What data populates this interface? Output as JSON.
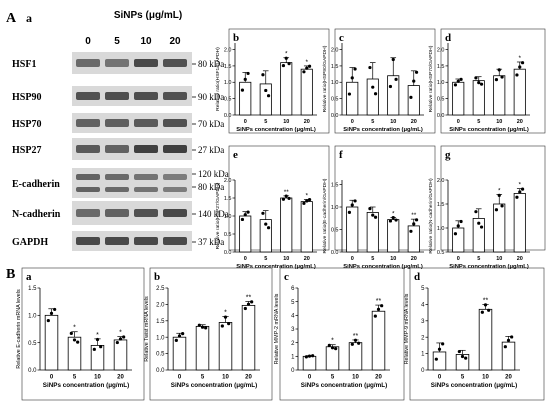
{
  "figure": {
    "panel_A": "A",
    "panel_B": "B",
    "sub_a": "a",
    "b_sub_a": "a"
  },
  "blot": {
    "conc_header": "SiNPs (μg/mL)",
    "conc": [
      "0",
      "5",
      "10",
      "20"
    ],
    "rows": [
      {
        "label": "HSF1",
        "sizes": [
          "80 kDa"
        ]
      },
      {
        "label": "HSP90",
        "sizes": [
          "90 kDa"
        ]
      },
      {
        "label": "HSP70",
        "sizes": [
          "70 kDa"
        ]
      },
      {
        "label": "HSP27",
        "sizes": [
          "27 kDa"
        ]
      },
      {
        "label": "E-cadherin",
        "sizes": [
          "120 kDa",
          "80 kDa"
        ]
      },
      {
        "label": "N-cadherin",
        "sizes": [
          "140 kDa"
        ]
      },
      {
        "label": "GAPDH",
        "sizes": [
          "37 kDa"
        ]
      }
    ]
  },
  "chart_data": [
    {
      "id": "Ab",
      "letter": "b",
      "type": "bar",
      "ylabel": "Relative ratio(HSF1/GAPDH)",
      "xlabel": "SiNPs concentration (μg/mL)",
      "categories": [
        "0",
        "5",
        "10",
        "20"
      ],
      "values": [
        1.0,
        0.95,
        1.6,
        1.4
      ],
      "errors": [
        0.3,
        0.4,
        0.15,
        0.1
      ],
      "ylim": [
        0,
        2.2
      ],
      "sig": [
        "",
        "",
        "*",
        "*"
      ]
    },
    {
      "id": "Ac",
      "letter": "c",
      "type": "bar",
      "ylabel": "Relative ratio(HSP90/GAPDH)",
      "xlabel": "SiNPs concentration (μg/mL)",
      "categories": [
        "0",
        "5",
        "10",
        "20"
      ],
      "values": [
        1.0,
        1.1,
        1.2,
        0.9
      ],
      "errors": [
        0.45,
        0.5,
        0.55,
        0.45
      ],
      "ylim": [
        0,
        2.2
      ],
      "sig": [
        "",
        "",
        "",
        ""
      ]
    },
    {
      "id": "Ad",
      "letter": "d",
      "type": "bar",
      "ylabel": "Relative ratio(HSP70/GAPDH)",
      "xlabel": "SiNPs concentration (μg/mL)",
      "categories": [
        "0",
        "5",
        "10",
        "20"
      ],
      "values": [
        1.0,
        1.05,
        1.2,
        1.4
      ],
      "errors": [
        0.1,
        0.12,
        0.2,
        0.22
      ],
      "ylim": [
        0,
        2.2
      ],
      "sig": [
        "",
        "",
        "",
        "*"
      ]
    },
    {
      "id": "Ae",
      "letter": "e",
      "type": "bar",
      "ylabel": "Relative ratio(HSP27/GAPDH)",
      "xlabel": "SiNPs concentration (μg/mL)",
      "categories": [
        "0",
        "5",
        "10",
        "20"
      ],
      "values": [
        1.0,
        0.9,
        1.5,
        1.4
      ],
      "errors": [
        0.12,
        0.25,
        0.06,
        0.06
      ],
      "ylim": [
        0,
        2.0
      ],
      "sig": [
        "",
        "",
        "**",
        "*"
      ]
    },
    {
      "id": "Af",
      "letter": "f",
      "type": "bar",
      "ylabel": "Relative ratio(E-cadherin/GAPDH)",
      "xlabel": "SiNPs concentration (μg/mL)",
      "categories": [
        "0",
        "5",
        "10",
        "20"
      ],
      "values": [
        1.0,
        0.88,
        0.72,
        0.58
      ],
      "errors": [
        0.15,
        0.12,
        0.05,
        0.15
      ],
      "ylim": [
        0,
        1.6
      ],
      "sig": [
        "",
        "",
        "*",
        "**"
      ]
    },
    {
      "id": "Ag",
      "letter": "g",
      "type": "bar",
      "ylabel": "Relative ratio(N-cadherin/GAPDH)",
      "xlabel": "SiNPs concentration (μg/mL)",
      "categories": [
        "0",
        "5",
        "10",
        "20"
      ],
      "values": [
        1.0,
        1.2,
        1.5,
        1.72
      ],
      "errors": [
        0.15,
        0.2,
        0.2,
        0.1
      ],
      "ylim": [
        0.5,
        2.0
      ],
      "ticks": [
        0.5,
        1.0,
        1.5,
        2.0
      ],
      "sig": [
        "",
        "",
        "*",
        "*"
      ]
    },
    {
      "id": "Ba",
      "letter": "a",
      "type": "bar",
      "ylabel": "Relative E-cadherin mRNA levels",
      "xlabel": "SiNPs concentration (μg/mL)",
      "categories": [
        "0",
        "5",
        "10",
        "20"
      ],
      "values": [
        1.0,
        0.6,
        0.45,
        0.55
      ],
      "errors": [
        0.12,
        0.1,
        0.12,
        0.06
      ],
      "ylim": [
        0,
        1.5
      ],
      "ticks": [
        0,
        0.5,
        1.0,
        1.5
      ],
      "sig": [
        "",
        "*",
        "*",
        "*"
      ]
    },
    {
      "id": "Bb",
      "letter": "b",
      "type": "bar",
      "ylabel": "Relative Twist mRNA levels",
      "xlabel": "SiNPs concentration (μg/mL)",
      "categories": [
        "0",
        "5",
        "10",
        "20"
      ],
      "values": [
        1.0,
        1.33,
        1.45,
        1.97
      ],
      "errors": [
        0.12,
        0.05,
        0.18,
        0.12
      ],
      "ylim": [
        0,
        2.5
      ],
      "ticks": [
        0,
        0.5,
        1.0,
        1.5,
        2.0,
        2.5
      ],
      "sig": [
        "",
        "",
        "*",
        "**"
      ]
    },
    {
      "id": "Bc",
      "letter": "c",
      "type": "bar",
      "ylabel": "Relative MMP-2 mRNA levels",
      "xlabel": "SiNPs concentration (μg/mL)",
      "categories": [
        "0",
        "5",
        "10",
        "20"
      ],
      "values": [
        1.0,
        1.7,
        2.0,
        4.3
      ],
      "errors": [
        0.05,
        0.15,
        0.2,
        0.45
      ],
      "ylim": [
        0,
        6
      ],
      "ticks": [
        0,
        1,
        2,
        3,
        4,
        5,
        6
      ],
      "sig": [
        "",
        "*",
        "**",
        "**"
      ]
    },
    {
      "id": "Bd",
      "letter": "d",
      "type": "bar",
      "ylabel": "Relative MMP-9 mRNA levels",
      "xlabel": "SiNPs concentration (μg/mL)",
      "categories": [
        "0",
        "5",
        "10",
        "20"
      ],
      "values": [
        1.1,
        0.95,
        3.7,
        1.7
      ],
      "errors": [
        0.55,
        0.25,
        0.3,
        0.35
      ],
      "ylim": [
        0,
        5
      ],
      "ticks": [
        0,
        1,
        2,
        3,
        4,
        5
      ],
      "sig": [
        "",
        "",
        "**",
        ""
      ]
    }
  ]
}
